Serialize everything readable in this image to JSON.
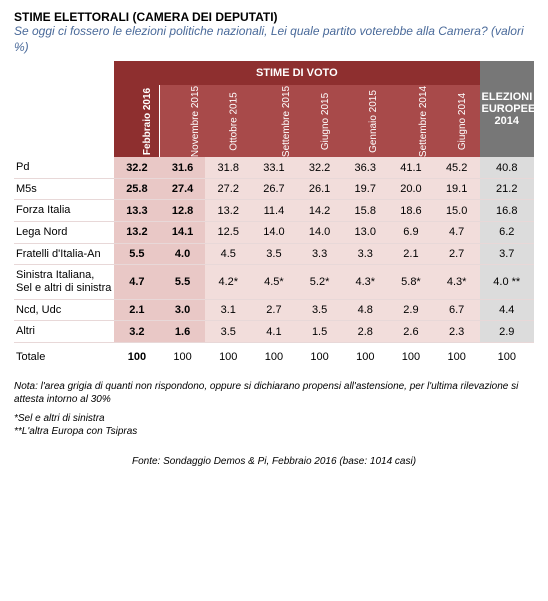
{
  "title": "STIME ELETTORALI  (CAMERA DEI DEPUTATI)",
  "subtitle": "Se oggi ci fossero le elezioni politiche nazionali, Lei quale partito voterebbe alla Camera? (valori %)",
  "groupHeaders": {
    "voto": "STIME DI VOTO",
    "eu": "ELEZIONI EUROPEE 2014"
  },
  "columns": [
    {
      "label": "Febbraio 2016",
      "bold": true
    },
    {
      "label": "Novembre 2015",
      "bold": false
    },
    {
      "label": "Ottobre 2015",
      "bold": false
    },
    {
      "label": "Settembre 2015",
      "bold": false
    },
    {
      "label": "Giugno 2015",
      "bold": false
    },
    {
      "label": "Gennaio 2015",
      "bold": false
    },
    {
      "label": "Settembre 2014",
      "bold": false
    },
    {
      "label": "Giugno 2014",
      "bold": false
    }
  ],
  "rows": [
    {
      "label": "Pd",
      "cells": [
        "32.2",
        "31.6",
        "31.8",
        "33.1",
        "32.2",
        "36.3",
        "41.1",
        "45.2"
      ],
      "eu": "40.8"
    },
    {
      "label": "M5s",
      "cells": [
        "25.8",
        "27.4",
        "27.2",
        "26.7",
        "26.1",
        "19.7",
        "20.0",
        "19.1"
      ],
      "eu": "21.2"
    },
    {
      "label": "Forza Italia",
      "cells": [
        "13.3",
        "12.8",
        "13.2",
        "11.4",
        "14.2",
        "15.8",
        "18.6",
        "15.0"
      ],
      "eu": "16.8"
    },
    {
      "label": "Lega Nord",
      "cells": [
        "13.2",
        "14.1",
        "12.5",
        "14.0",
        "14.0",
        "13.0",
        "6.9",
        "4.7"
      ],
      "eu": "6.2"
    },
    {
      "label": "Fratelli d'Italia-An",
      "cells": [
        "5.5",
        "4.0",
        "4.5",
        "3.5",
        "3.3",
        "3.3",
        "2.1",
        "2.7"
      ],
      "eu": "3.7"
    },
    {
      "label": "Sinistra Italiana, Sel e altri di sinistra",
      "cells": [
        "4.7",
        "5.5",
        "4.2*",
        "4.5*",
        "5.2*",
        "4.3*",
        "5.8*",
        "4.3*"
      ],
      "eu": "4.0 **"
    },
    {
      "label": "Ncd, Udc",
      "cells": [
        "2.1",
        "3.0",
        "3.1",
        "2.7",
        "3.5",
        "4.8",
        "2.9",
        "6.7"
      ],
      "eu": "4.4"
    },
    {
      "label": "Altri",
      "cells": [
        "3.2",
        "1.6",
        "3.5",
        "4.1",
        "1.5",
        "2.8",
        "2.6",
        "2.3"
      ],
      "eu": "2.9"
    }
  ],
  "totalRow": {
    "label": "Totale",
    "cells": [
      "100",
      "100",
      "100",
      "100",
      "100",
      "100",
      "100",
      "100"
    ],
    "eu": "100"
  },
  "notes": {
    "n1": "Nota: l'area grigia di quanti non rispondono, oppure si dichiarano propensi all'astensione, per l'ultima rilevazione si attesta intorno al 30%",
    "n2": "*Sel e altri di sinistra",
    "n3": "**L'altra Europa con Tsipras"
  },
  "source": "Fonte: Sondaggio Demos & Pi, Febbraio 2016 (base: 1014 casi)",
  "style": {
    "headerDark": "#8e2f2f",
    "headerLight": "#a84a4a",
    "greyHeader": "#777777",
    "rowShadeA": "#e9c8c6",
    "rowShadeB": "#f2dddb",
    "greyCell": "#dcdcdc",
    "borderRow": "#e8d8d8",
    "labelWidth": "92px",
    "colWidth": "42px",
    "euWidth": "50px"
  }
}
